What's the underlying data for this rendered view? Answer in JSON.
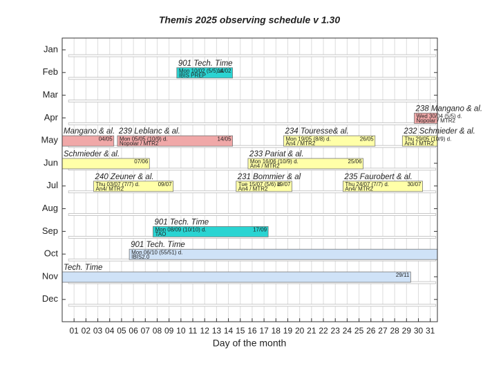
{
  "chart_data": {
    "type": "gantt",
    "title": "Themis 2025 observing schedule v 1.30",
    "x_label": "Day of the month",
    "categories": [
      "Jan",
      "Feb",
      "Mar",
      "Apr",
      "May",
      "Jun",
      "Jul",
      "Aug",
      "Sep",
      "Oct",
      "Nov",
      "Dec"
    ],
    "xlim": [
      0,
      31.6
    ],
    "xticks": [
      {
        "value": 1,
        "label": "01"
      },
      {
        "value": 2,
        "label": "02"
      },
      {
        "value": 3,
        "label": "03"
      },
      {
        "value": 4,
        "label": "04"
      },
      {
        "value": 5,
        "label": "05"
      },
      {
        "value": 6,
        "label": "06"
      },
      {
        "value": 7,
        "label": "07"
      },
      {
        "value": 8,
        "label": "08"
      },
      {
        "value": 9,
        "label": "09"
      },
      10,
      11,
      12,
      13,
      14,
      15,
      16,
      17,
      18,
      19,
      20,
      21,
      22,
      23,
      24,
      25,
      26,
      27,
      28,
      29,
      30,
      31
    ],
    "grid": true,
    "events": [
      {
        "month": 1,
        "start": 10,
        "end": 14,
        "title": "901 Tech. Time",
        "line1": "Mon 10/02 (5/5) d.",
        "line2": "IBIS PREP",
        "end_label": "14/02",
        "color": "#2ad4d2"
      },
      {
        "month": 3,
        "start": 30,
        "title": "238 Mangano & al.",
        "line1": "Wed 30/04 (5/5) d.",
        "line2": "Nopolar / MTR2",
        "color": "#f0a8a8"
      },
      {
        "month": 4,
        "end": 4,
        "title": "Mangano & al.",
        "end_label": "04/05",
        "color": "#f0a8a8"
      },
      {
        "month": 4,
        "start": 5,
        "end": 14,
        "title": "239 Leblanc & al.",
        "line1": "Mon 05/05 (10/9) d.",
        "line2": "Nopolar / MTR2",
        "end_label": "14/05",
        "color": "#f0a8a8"
      },
      {
        "month": 4,
        "start": 19,
        "end": 26,
        "title": "234 Touresse& al.",
        "line1": "Mon 19/05 (8/8) d.",
        "line2": "An4 / MTR2",
        "end_label": "26/05",
        "color": "#ffffa8"
      },
      {
        "month": 4,
        "start": 29,
        "title": "232  Schmieder & al.",
        "line1": "Thu 29/05 (10/9) d.",
        "line2": "An4 / MTR2",
        "color": "#ffffa8"
      },
      {
        "month": 5,
        "end": 7,
        "title": "Schmieder & al.",
        "end_label": "07/06",
        "color": "#ffffa8"
      },
      {
        "month": 5,
        "start": 16,
        "end": 25,
        "title": "233 Pariat  & al.",
        "line1": "Mon 16/06 (10/9) d.",
        "line2": "An4 / MTR2",
        "end_label": "25/06",
        "color": "#ffffa8"
      },
      {
        "month": 6,
        "start": 3,
        "end": 9,
        "title": "240 Zeuner & al.",
        "line1": "Thu 03/07 (7/7) d.",
        "line2": "An4/ MTR2",
        "end_label": "09/07",
        "color": "#ffffa8"
      },
      {
        "month": 6,
        "start": 15,
        "end": 19,
        "title": "231 Bommier & al",
        "line1": "Tue 15/07 (5/6) d.",
        "line2": "An4 / MTR2",
        "end_label": "19/07",
        "color": "#ffffa8"
      },
      {
        "month": 6,
        "start": 24,
        "end": 30,
        "title": "235 Faurobert & al.",
        "line1": "Thu 24/07 (7/7) d.",
        "line2": "An4/ MTR2",
        "end_label": "30/07",
        "color": "#ffffa8"
      },
      {
        "month": 8,
        "start": 8,
        "end": 17,
        "title": "901 Tech. Time",
        "line1": "Mon 08/09 (10/10) d.",
        "line2": "TAO",
        "end_label": "17/09",
        "color": "#2ad4d2"
      },
      {
        "month": 9,
        "start": 6,
        "title": "901 Tech. Time",
        "line1": "Mon 06/10 (55/51) d.",
        "line2": "IBIS2.0",
        "color": "#cfe2f7"
      },
      {
        "month": 10,
        "end": 29,
        "title": "Tech. Time",
        "end_label": "29/11",
        "color": "#cfe2f7"
      }
    ]
  }
}
